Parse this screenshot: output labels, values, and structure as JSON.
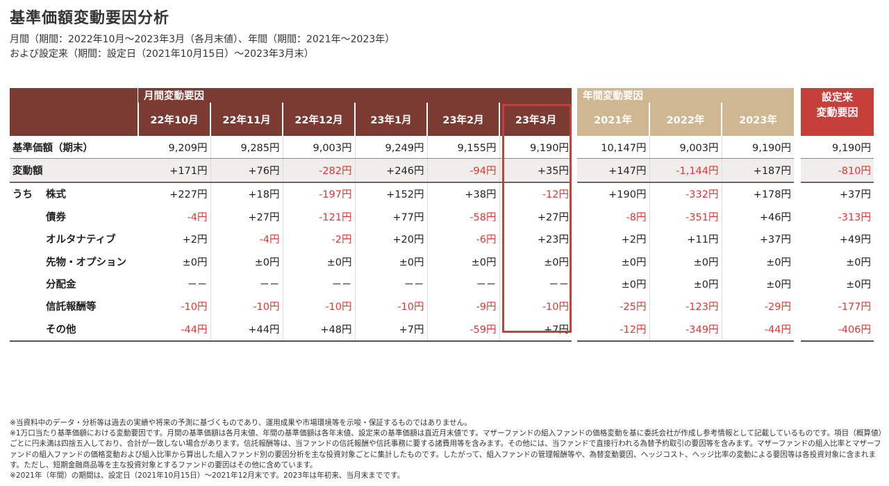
{
  "title": "基準価額変動要因分析",
  "subtitle_line1": "月間（期間：2022年10月～2023年3月（各月末値）、年間（期間：2021年～2023年）",
  "subtitle_line2": "および設定来（期間：設定日（2021年10月15日）～2023年3月末）",
  "groups": {
    "monthly": "月間変動要因",
    "yearly": "年間変動要因",
    "since": "設定来\n変動要因"
  },
  "monthly_columns": [
    "22年10月",
    "22年11月",
    "22年12月",
    "23年1月",
    "23年2月",
    "23年3月"
  ],
  "yearly_columns": [
    "2021年",
    "2022年",
    "2023年"
  ],
  "uchi_label": "うち",
  "rows": [
    {
      "label": "基準価額（期末）",
      "values": [
        "9,209円",
        "9,285円",
        "9,003円",
        "9,249円",
        "9,155円",
        "9,190円",
        "10,147円",
        "9,003円",
        "9,190円",
        "9,190円"
      ]
    },
    {
      "label": "変動額",
      "values": [
        "+171円",
        "+76円",
        "-282円",
        "+246円",
        "-94円",
        "+35円",
        "+147円",
        "-1,144円",
        "+187円",
        "-810円"
      ]
    },
    {
      "label": "株式",
      "values": [
        "+227円",
        "+18円",
        "-197円",
        "+152円",
        "+38円",
        "-12円",
        "+190円",
        "-332円",
        "+178円",
        "+37円"
      ]
    },
    {
      "label": "債券",
      "values": [
        "-4円",
        "+27円",
        "-121円",
        "+77円",
        "-58円",
        "+27円",
        "-8円",
        "-351円",
        "+46円",
        "-313円"
      ]
    },
    {
      "label": "オルタナティブ",
      "values": [
        "+2円",
        "-4円",
        "-2円",
        "+20円",
        "-6円",
        "+23円",
        "+2円",
        "+11円",
        "+37円",
        "+49円"
      ]
    },
    {
      "label": "先物・オプション",
      "values": [
        "±0円",
        "±0円",
        "±0円",
        "±0円",
        "±0円",
        "±0円",
        "±0円",
        "±0円",
        "±0円",
        "±0円"
      ]
    },
    {
      "label": "分配金",
      "values": [
        "－－",
        "－－",
        "－－",
        "－－",
        "－－",
        "－－",
        "±0円",
        "±0円",
        "±0円",
        "±0円"
      ]
    },
    {
      "label": "信託報酬等",
      "values": [
        "-10円",
        "-10円",
        "-10円",
        "-10円",
        "-9円",
        "-10円",
        "-25円",
        "-123円",
        "-29円",
        "-177円"
      ]
    },
    {
      "label": "その他",
      "values": [
        "-44円",
        "+44円",
        "+48円",
        "+7円",
        "-59円",
        "+7円",
        "-12円",
        "-349円",
        "-44円",
        "-406円"
      ]
    }
  ],
  "notes": [
    "※当資料中のデータ・分析等は過去の実績や将来の予測に基づくものであり、運用成果や市場環境等を示唆・保証するものではありません。",
    "※1万口当たり基準価額における変動要因です。月間の基準価額は各月末値、年間の基準価額は各年末値、設定来の基準価額は直近月末値です。マザーファンドの組入ファンドの価格変動を基に委託会社が作成し参考情報として記載しているものです。項目（概算値）ごとに円未満は四捨五入しており、合計が一致しない場合があります。信託報酬等は、当ファンドの信託報酬や信託事務に要する諸費用等を含みます。その他には、当ファンドで直接行われる為替予約取引の要因等を含みます。マザーファンドの組入比率とマザーファンドの組入ファンドの価格変動および組入比率から算出した組入ファンド別の要因分析を主な投資対象ごとに集計したものです。したがって、組入ファンドの管理報酬等や、為替変動要因、ヘッジコスト、ヘッジ比率の変動による要因等は各投資対象に含まれます。ただし、短期金融商品等を主な投資対象とするファンドの要因はその他に含めています。",
    "※2021年（年間）の期間は、設定日（2021年10月15日）～2021年12月末です。2023年は年初来、当月末までです。"
  ],
  "colors": {
    "monthly_header": "#7b3b33",
    "yearly_header": "#cfb792",
    "since_header": "#c5403b",
    "negative": "#e3342f",
    "highlight_border": "#c5403b"
  }
}
